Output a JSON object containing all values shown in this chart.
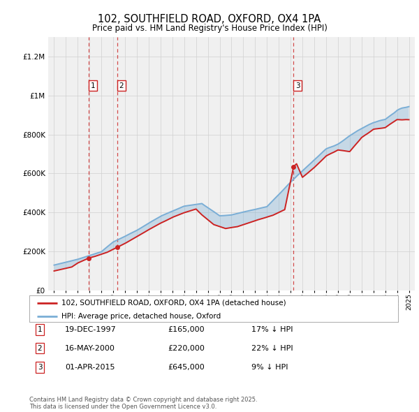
{
  "title_line1": "102, SOUTHFIELD ROAD, OXFORD, OX4 1PA",
  "title_line2": "Price paid vs. HM Land Registry's House Price Index (HPI)",
  "ylim": [
    0,
    1300000
  ],
  "yticks": [
    0,
    200000,
    400000,
    600000,
    800000,
    1000000,
    1200000
  ],
  "ytick_labels": [
    "£0",
    "£200K",
    "£400K",
    "£600K",
    "£800K",
    "£1M",
    "£1.2M"
  ],
  "legend_entries": [
    "102, SOUTHFIELD ROAD, OXFORD, OX4 1PA (detached house)",
    "HPI: Average price, detached house, Oxford"
  ],
  "sale_dates_str": [
    "19-DEC-1997",
    "16-MAY-2000",
    "01-APR-2015"
  ],
  "sale_prices": [
    165000,
    220000,
    645000
  ],
  "sale_labels": [
    "1",
    "2",
    "3"
  ],
  "sale_below_hpi_pct": [
    "17%",
    "22%",
    "9%"
  ],
  "footnote": "Contains HM Land Registry data © Crown copyright and database right 2025.\nThis data is licensed under the Open Government Licence v3.0.",
  "background_color": "#ffffff",
  "plot_bg_color": "#f0f0f0",
  "grid_color": "#d0d0d0",
  "red_color": "#cc2222",
  "blue_color": "#7aaed6"
}
